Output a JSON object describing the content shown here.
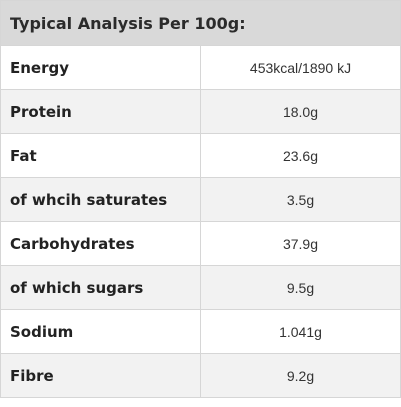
{
  "title": "Typical Analysis Per 100g:",
  "rows": [
    {
      "label": "Energy",
      "value": "453kcal/1890 kJ"
    },
    {
      "label": "Protein",
      "value": "18.0g"
    },
    {
      "label": "Fat",
      "value": "23.6g"
    },
    {
      "label": "of whcih saturates",
      "value": "3.5g"
    },
    {
      "label": "Carbohydrates",
      "value": "37.9g"
    },
    {
      "label": "of which sugars",
      "value": "9.5g"
    },
    {
      "label": "Sodium",
      "value": "1.041g"
    },
    {
      "label": "Fibre",
      "value": "9.2g"
    }
  ],
  "colors": {
    "header_bg": "#d9d9d9",
    "shaded_row_bg": "#f2f2f2",
    "border": "#d6d6d6"
  }
}
